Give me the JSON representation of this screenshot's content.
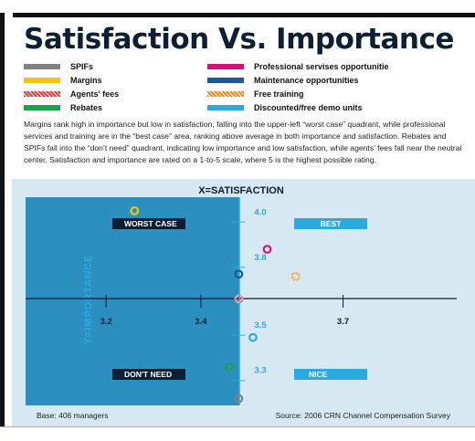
{
  "title": "Satisfaction Vs. Importance",
  "legend": [
    {
      "label": "SPIFs",
      "color": "#808285",
      "pattern": "solid"
    },
    {
      "label": "Professional servises opportunitie",
      "color": "#d6127a",
      "pattern": "solid"
    },
    {
      "label": "Margins",
      "color": "#f2c515",
      "pattern": "solid"
    },
    {
      "label": "Maintenance opportunities",
      "color": "#1c5a96",
      "pattern": "solid"
    },
    {
      "label": "Agents' fees",
      "color": "#e8393f",
      "pattern": "hatched"
    },
    {
      "label": "Free training",
      "color": "#f08a24",
      "pattern": "hatched"
    },
    {
      "label": "Rebates",
      "color": "#1aa34a",
      "pattern": "solid"
    },
    {
      "label": "Discounted/free demo units",
      "color": "#29abe2",
      "pattern": "solid"
    }
  ],
  "description": "Margins rank high in importance but low in satisfaction, falling into the upper-left “worst case” quadrant, while professional services and training are in the “best case” area, ranking above average in both importance and satisfaction. Rebates and SPIFs fall into the “don’t need” quadrant, indicating low importance and low satisfaction, while agents’ fees fall near the neutral center. Satisfaction and importance are rated on a 1-to-5 scale, where 5 is the highest possible rating.",
  "chart_data": {
    "type": "scatter",
    "xlabel": "X=SATISFACTION",
    "ylabel": "Y=IMPORTANCE",
    "x_ticks": [
      3.2,
      3.4,
      3.7
    ],
    "y_ticks": [
      4.0,
      3.8,
      3.5,
      3.3
    ],
    "x_tick_labels": [
      "3.2",
      "3.4",
      "3.7"
    ],
    "y_tick_labels": [
      "4.0",
      "3.8",
      "3.5",
      "3.3"
    ],
    "xlim": [
      3.03,
      3.94
    ],
    "ylim": [
      3.19,
      4.11
    ],
    "center": {
      "x": 3.48,
      "y": 3.65
    },
    "quadrants": {
      "top_left": "WORST CASE",
      "top_right": "BEST",
      "bottom_left": "DON'T NEED",
      "bottom_right": "NICE"
    },
    "points": [
      {
        "series": "Margins",
        "x": 3.26,
        "y": 4.05,
        "color": "#f2c515",
        "pattern": "solid"
      },
      {
        "series": "Professional servises opportunitie",
        "x": 3.54,
        "y": 3.88,
        "color": "#d6127a",
        "pattern": "solid"
      },
      {
        "series": "Maintenance opportunities",
        "x": 3.48,
        "y": 3.77,
        "color": "#1c5a96",
        "pattern": "solid"
      },
      {
        "series": "Free training",
        "x": 3.6,
        "y": 3.76,
        "color": "#f08a24",
        "pattern": "hatched"
      },
      {
        "series": "Agents' fees",
        "x": 3.48,
        "y": 3.66,
        "color": "#e8393f",
        "pattern": "hatched"
      },
      {
        "series": "Discounted/free demo units",
        "x": 3.51,
        "y": 3.49,
        "color": "#29abe2",
        "pattern": "solid"
      },
      {
        "series": "Rebates",
        "x": 3.46,
        "y": 3.36,
        "color": "#1aa34a",
        "pattern": "solid"
      },
      {
        "series": "SPIFs",
        "x": 3.48,
        "y": 3.22,
        "color": "#808285",
        "pattern": "solid"
      }
    ]
  },
  "footer": {
    "base": "Base: 406 managers",
    "source": "Source: 2006 CRN Channel Compensation Survey"
  }
}
